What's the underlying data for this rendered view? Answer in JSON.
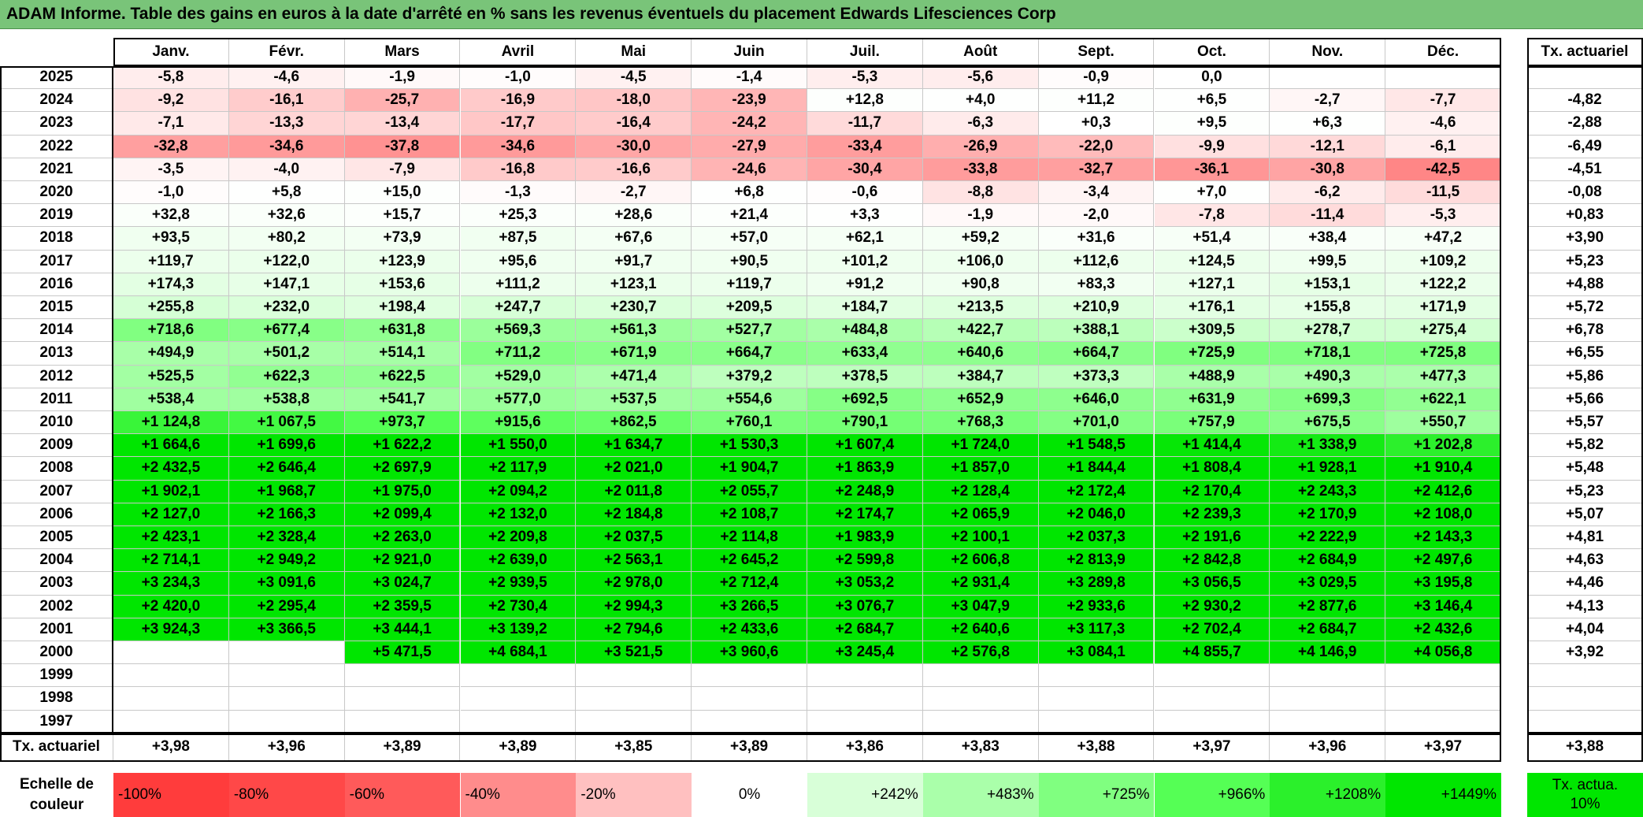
{
  "title": "ADAM Informe. Table des gains en euros à la date d'arrêté en % sans les revenus éventuels du placement Edwards Lifesciences Corp",
  "table": {
    "columns": [
      "Janv.",
      "Févr.",
      "Mars",
      "Avril",
      "Mai",
      "Juin",
      "Juil.",
      "Août",
      "Sept.",
      "Oct.",
      "Nov.",
      "Déc."
    ],
    "rate_header": "Tx. actuariel",
    "rows": [
      {
        "year": "2025",
        "cells": [
          "-5,8",
          "-4,6",
          "-1,9",
          "-1,0",
          "-4,5",
          "-1,4",
          "-5,3",
          "-5,6",
          "-0,9",
          "0,0",
          null,
          null
        ],
        "rate": null
      },
      {
        "year": "2024",
        "cells": [
          "-9,2",
          "-16,1",
          "-25,7",
          "-16,9",
          "-18,0",
          "-23,9",
          "+12,8",
          "+4,0",
          "+11,2",
          "+6,5",
          "-2,7",
          "-7,7"
        ],
        "rate": "-4,82"
      },
      {
        "year": "2023",
        "cells": [
          "-7,1",
          "-13,3",
          "-13,4",
          "-17,7",
          "-16,4",
          "-24,2",
          "-11,7",
          "-6,3",
          "+0,3",
          "+9,5",
          "+6,3",
          "-4,6"
        ],
        "rate": "-2,88"
      },
      {
        "year": "2022",
        "cells": [
          "-32,8",
          "-34,6",
          "-37,8",
          "-34,6",
          "-30,0",
          "-27,9",
          "-33,4",
          "-26,9",
          "-22,0",
          "-9,9",
          "-12,1",
          "-6,1"
        ],
        "rate": "-6,49"
      },
      {
        "year": "2021",
        "cells": [
          "-3,5",
          "-4,0",
          "-7,9",
          "-16,8",
          "-16,6",
          "-24,6",
          "-30,4",
          "-33,8",
          "-32,7",
          "-36,1",
          "-30,8",
          "-42,5"
        ],
        "rate": "-4,51"
      },
      {
        "year": "2020",
        "cells": [
          "-1,0",
          "+5,8",
          "+15,0",
          "-1,3",
          "-2,7",
          "+6,8",
          "-0,6",
          "-8,8",
          "-3,4",
          "+7,0",
          "-6,2",
          "-11,5"
        ],
        "rate": "-0,08"
      },
      {
        "year": "2019",
        "cells": [
          "+32,8",
          "+32,6",
          "+15,7",
          "+25,3",
          "+28,6",
          "+21,4",
          "+3,3",
          "-1,9",
          "-2,0",
          "-7,8",
          "-11,4",
          "-5,3"
        ],
        "rate": "+0,83"
      },
      {
        "year": "2018",
        "cells": [
          "+93,5",
          "+80,2",
          "+73,9",
          "+87,5",
          "+67,6",
          "+57,0",
          "+62,1",
          "+59,2",
          "+31,6",
          "+51,4",
          "+38,4",
          "+47,2"
        ],
        "rate": "+3,90"
      },
      {
        "year": "2017",
        "cells": [
          "+119,7",
          "+122,0",
          "+123,9",
          "+95,6",
          "+91,7",
          "+90,5",
          "+101,2",
          "+106,0",
          "+112,6",
          "+124,5",
          "+99,5",
          "+109,2"
        ],
        "rate": "+5,23"
      },
      {
        "year": "2016",
        "cells": [
          "+174,3",
          "+147,1",
          "+153,6",
          "+111,2",
          "+123,1",
          "+119,7",
          "+91,2",
          "+90,8",
          "+83,3",
          "+127,1",
          "+153,1",
          "+122,2"
        ],
        "rate": "+4,88"
      },
      {
        "year": "2015",
        "cells": [
          "+255,8",
          "+232,0",
          "+198,4",
          "+247,7",
          "+230,7",
          "+209,5",
          "+184,7",
          "+213,5",
          "+210,9",
          "+176,1",
          "+155,8",
          "+171,9"
        ],
        "rate": "+5,72"
      },
      {
        "year": "2014",
        "cells": [
          "+718,6",
          "+677,4",
          "+631,8",
          "+569,3",
          "+561,3",
          "+527,7",
          "+484,8",
          "+422,7",
          "+388,1",
          "+309,5",
          "+278,7",
          "+275,4"
        ],
        "rate": "+6,78"
      },
      {
        "year": "2013",
        "cells": [
          "+494,9",
          "+501,2",
          "+514,1",
          "+711,2",
          "+671,9",
          "+664,7",
          "+633,4",
          "+640,6",
          "+664,7",
          "+725,9",
          "+718,1",
          "+725,8"
        ],
        "rate": "+6,55"
      },
      {
        "year": "2012",
        "cells": [
          "+525,5",
          "+622,3",
          "+622,5",
          "+529,0",
          "+471,4",
          "+379,2",
          "+378,5",
          "+384,7",
          "+373,3",
          "+488,9",
          "+490,3",
          "+477,3"
        ],
        "rate": "+5,86"
      },
      {
        "year": "2011",
        "cells": [
          "+538,4",
          "+538,8",
          "+541,7",
          "+577,0",
          "+537,5",
          "+554,6",
          "+692,5",
          "+652,9",
          "+646,0",
          "+631,9",
          "+699,3",
          "+622,1"
        ],
        "rate": "+5,66"
      },
      {
        "year": "2010",
        "cells": [
          "+1 124,8",
          "+1 067,5",
          "+973,7",
          "+915,6",
          "+862,5",
          "+760,1",
          "+790,1",
          "+768,3",
          "+701,0",
          "+757,9",
          "+675,5",
          "+550,7"
        ],
        "rate": "+5,57"
      },
      {
        "year": "2009",
        "cells": [
          "+1 664,6",
          "+1 699,6",
          "+1 622,2",
          "+1 550,0",
          "+1 634,7",
          "+1 530,3",
          "+1 607,4",
          "+1 724,0",
          "+1 548,5",
          "+1 414,4",
          "+1 338,9",
          "+1 202,8"
        ],
        "rate": "+5,82"
      },
      {
        "year": "2008",
        "cells": [
          "+2 432,5",
          "+2 646,4",
          "+2 697,9",
          "+2 117,9",
          "+2 021,0",
          "+1 904,7",
          "+1 863,9",
          "+1 857,0",
          "+1 844,4",
          "+1 808,4",
          "+1 928,1",
          "+1 910,4"
        ],
        "rate": "+5,48"
      },
      {
        "year": "2007",
        "cells": [
          "+1 902,1",
          "+1 968,7",
          "+1 975,0",
          "+2 094,2",
          "+2 011,8",
          "+2 055,7",
          "+2 248,9",
          "+2 128,4",
          "+2 172,4",
          "+2 170,4",
          "+2 243,3",
          "+2 412,6"
        ],
        "rate": "+5,23"
      },
      {
        "year": "2006",
        "cells": [
          "+2 127,0",
          "+2 166,3",
          "+2 099,4",
          "+2 132,0",
          "+2 184,8",
          "+2 108,7",
          "+2 174,7",
          "+2 065,9",
          "+2 046,0",
          "+2 239,3",
          "+2 170,9",
          "+2 108,0"
        ],
        "rate": "+5,07"
      },
      {
        "year": "2005",
        "cells": [
          "+2 423,1",
          "+2 328,4",
          "+2 263,0",
          "+2 209,8",
          "+2 037,5",
          "+2 114,8",
          "+1 983,9",
          "+2 100,1",
          "+2 037,3",
          "+2 191,6",
          "+2 222,9",
          "+2 143,3"
        ],
        "rate": "+4,81"
      },
      {
        "year": "2004",
        "cells": [
          "+2 714,1",
          "+2 949,2",
          "+2 921,0",
          "+2 639,0",
          "+2 563,1",
          "+2 645,2",
          "+2 599,8",
          "+2 606,8",
          "+2 813,9",
          "+2 842,8",
          "+2 684,9",
          "+2 497,6"
        ],
        "rate": "+4,63"
      },
      {
        "year": "2003",
        "cells": [
          "+3 234,3",
          "+3 091,6",
          "+3 024,7",
          "+2 939,5",
          "+2 978,0",
          "+2 712,4",
          "+3 053,2",
          "+2 931,4",
          "+3 289,8",
          "+3 056,5",
          "+3 029,5",
          "+3 195,8"
        ],
        "rate": "+4,46"
      },
      {
        "year": "2002",
        "cells": [
          "+2 420,0",
          "+2 295,4",
          "+2 359,5",
          "+2 730,4",
          "+2 994,3",
          "+3 266,5",
          "+3 076,7",
          "+3 047,9",
          "+2 933,6",
          "+2 930,2",
          "+2 877,6",
          "+3 146,4"
        ],
        "rate": "+4,13"
      },
      {
        "year": "2001",
        "cells": [
          "+3 924,3",
          "+3 366,5",
          "+3 444,1",
          "+3 139,2",
          "+2 794,6",
          "+2 433,6",
          "+2 684,7",
          "+2 640,6",
          "+3 117,3",
          "+2 702,4",
          "+2 684,7",
          "+2 432,6"
        ],
        "rate": "+4,04"
      },
      {
        "year": "2000",
        "cells": [
          null,
          null,
          "+5 471,5",
          "+4 684,1",
          "+3 521,5",
          "+3 960,6",
          "+3 245,4",
          "+2 576,8",
          "+3 084,1",
          "+4 855,7",
          "+4 146,9",
          "+4 056,8"
        ],
        "rate": "+3,92"
      },
      {
        "year": "1999",
        "cells": [
          null,
          null,
          null,
          null,
          null,
          null,
          null,
          null,
          null,
          null,
          null,
          null
        ],
        "rate": null
      },
      {
        "year": "1998",
        "cells": [
          null,
          null,
          null,
          null,
          null,
          null,
          null,
          null,
          null,
          null,
          null,
          null
        ],
        "rate": null
      },
      {
        "year": "1997",
        "cells": [
          null,
          null,
          null,
          null,
          null,
          null,
          null,
          null,
          null,
          null,
          null,
          null
        ],
        "rate": null
      }
    ],
    "footer": {
      "label": "Tx. actuariel",
      "cells": [
        "+3,98",
        "+3,96",
        "+3,89",
        "+3,89",
        "+3,85",
        "+3,89",
        "+3,86",
        "+3,83",
        "+3,88",
        "+3,97",
        "+3,96",
        "+3,97"
      ],
      "rate": "+3,88"
    }
  },
  "color_scale": {
    "label": "Echelle de couleur",
    "stops": [
      {
        "label": "-100%",
        "color": "#ff3c3c"
      },
      {
        "label": "-80%",
        "color": "#ff4848"
      },
      {
        "label": "-60%",
        "color": "#ff5a5a"
      },
      {
        "label": "-40%",
        "color": "#ff8c8c"
      },
      {
        "label": "-20%",
        "color": "#ffc0c0"
      },
      {
        "label": "0%",
        "color": "#ffffff"
      },
      {
        "label": "+242%",
        "color": "#d8ffd8"
      },
      {
        "label": "+483%",
        "color": "#aaffaa"
      },
      {
        "label": "+725%",
        "color": "#80ff80"
      },
      {
        "label": "+966%",
        "color": "#55ff55"
      },
      {
        "label": "+1208%",
        "color": "#2bf02b"
      },
      {
        "label": "+1449%",
        "color": "#00e600"
      }
    ],
    "rate_note": {
      "label": "Tx. actua. 10%",
      "color": "#00e600"
    }
  }
}
